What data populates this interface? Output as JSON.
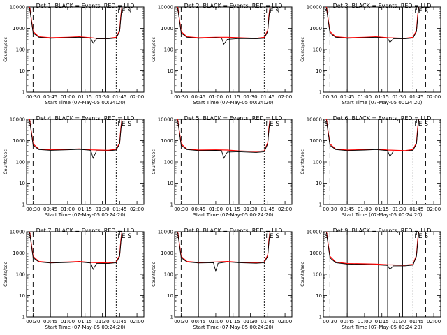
{
  "x_tick_labels": [
    "00:30",
    "00:45",
    "01:00",
    "01:15",
    "01:30",
    "01:45",
    "02:00"
  ],
  "y_tick_labels": [
    "1",
    "10",
    "100",
    "1000",
    "10000"
  ],
  "y_axis_label": "Counts/sec",
  "x_axis_label": "Start Time (07-May-05 00:24:20)",
  "annotation_left": "S",
  "annotation_right": "I E S",
  "colors": {
    "events": "#000000",
    "lld": "#ff0000",
    "background": "#ffffff"
  },
  "chart_data": [
    {
      "type": "line",
      "title": "Det 1, BLACK = Events, RED = LLD",
      "xlabel": "Start Time (07-May-05 00:24:20)",
      "ylabel": "Counts/sec",
      "x_range": [
        "00:24:20",
        "02:06"
      ],
      "ylim": [
        1,
        10000
      ],
      "y_scale": "log",
      "grid": false,
      "series": [
        {
          "name": "Events",
          "color": "black",
          "x": [
            "00:27",
            "00:30",
            "00:35",
            "00:45",
            "01:00",
            "01:10",
            "01:20",
            "01:22",
            "01:25",
            "01:35",
            "01:42",
            "01:45",
            "01:46",
            "01:47"
          ],
          "y": [
            9000,
            600,
            380,
            340,
            360,
            380,
            340,
            200,
            320,
            320,
            350,
            700,
            3000,
            10000
          ]
        },
        {
          "name": "LLD",
          "color": "red",
          "x": [
            "00:27",
            "00:30",
            "00:35",
            "00:45",
            "01:00",
            "01:10",
            "01:20",
            "01:25",
            "01:35",
            "01:42",
            "01:45",
            "01:46",
            "01:47"
          ],
          "y": [
            10000,
            700,
            400,
            360,
            380,
            400,
            360,
            340,
            340,
            380,
            800,
            4000,
            10000
          ]
        }
      ]
    },
    {
      "type": "line",
      "title": "Det 2, BLACK = Events, RED = LLD",
      "xlabel": "Start Time (07-May-05 00:24:20)",
      "ylabel": "Counts/sec",
      "x_range": [
        "00:24:20",
        "02:06"
      ],
      "ylim": [
        1,
        10000
      ],
      "y_scale": "log",
      "grid": false,
      "series": [
        {
          "name": "Events",
          "color": "black",
          "x": [
            "00:27",
            "00:30",
            "00:35",
            "00:45",
            "01:00",
            "01:05",
            "01:07",
            "01:10",
            "01:20",
            "01:35",
            "01:42",
            "01:45",
            "01:46",
            "01:47"
          ],
          "y": [
            9000,
            600,
            380,
            340,
            360,
            350,
            180,
            300,
            330,
            320,
            340,
            700,
            3000,
            10000
          ]
        },
        {
          "name": "LLD",
          "color": "red",
          "x": [
            "00:27",
            "00:30",
            "00:35",
            "00:45",
            "01:00",
            "01:10",
            "01:20",
            "01:35",
            "01:42",
            "01:45",
            "01:46",
            "01:47"
          ],
          "y": [
            10000,
            700,
            400,
            360,
            380,
            380,
            360,
            340,
            380,
            800,
            4000,
            10000
          ]
        }
      ]
    },
    {
      "type": "line",
      "title": "Det 3, BLACK = Events, RED = LLD",
      "xlabel": "Start Time (07-May-05 00:24:20)",
      "ylabel": "Counts/sec",
      "x_range": [
        "00:24:20",
        "02:06"
      ],
      "ylim": [
        1,
        10000
      ],
      "y_scale": "log",
      "grid": false,
      "series": [
        {
          "name": "Events",
          "color": "black",
          "x": [
            "00:27",
            "00:30",
            "00:35",
            "00:45",
            "01:00",
            "01:10",
            "01:20",
            "01:22",
            "01:25",
            "01:35",
            "01:42",
            "01:45",
            "01:46",
            "01:47"
          ],
          "y": [
            9000,
            600,
            380,
            340,
            360,
            380,
            340,
            220,
            320,
            320,
            350,
            700,
            3000,
            10000
          ]
        },
        {
          "name": "LLD",
          "color": "red",
          "x": [
            "00:27",
            "00:30",
            "00:35",
            "00:45",
            "01:00",
            "01:10",
            "01:20",
            "01:35",
            "01:42",
            "01:45",
            "01:46",
            "01:47"
          ],
          "y": [
            10000,
            700,
            400,
            360,
            380,
            400,
            360,
            340,
            380,
            800,
            4000,
            10000
          ]
        }
      ]
    },
    {
      "type": "line",
      "title": "Det 4, BLACK = Events, RED = LLD",
      "xlabel": "Start Time (07-May-05 00:24:20)",
      "ylabel": "Counts/sec",
      "x_range": [
        "00:24:20",
        "02:06"
      ],
      "ylim": [
        1,
        10000
      ],
      "y_scale": "log",
      "grid": false,
      "series": [
        {
          "name": "Events",
          "color": "black",
          "x": [
            "00:27",
            "00:30",
            "00:35",
            "00:45",
            "01:00",
            "01:10",
            "01:20",
            "01:22",
            "01:25",
            "01:35",
            "01:42",
            "01:45",
            "01:46",
            "01:47"
          ],
          "y": [
            9000,
            600,
            380,
            350,
            370,
            390,
            350,
            150,
            330,
            330,
            360,
            700,
            3000,
            10000
          ]
        },
        {
          "name": "LLD",
          "color": "red",
          "x": [
            "00:27",
            "00:30",
            "00:35",
            "00:45",
            "01:00",
            "01:10",
            "01:20",
            "01:35",
            "01:42",
            "01:45",
            "01:46",
            "01:47"
          ],
          "y": [
            10000,
            700,
            400,
            370,
            390,
            410,
            370,
            350,
            390,
            800,
            4000,
            10000
          ]
        }
      ]
    },
    {
      "type": "line",
      "title": "Det 5, BLACK = Events, RED = LLD",
      "xlabel": "Start Time (07-May-05 00:24:20)",
      "ylabel": "Counts/sec",
      "x_range": [
        "00:24:20",
        "02:06"
      ],
      "ylim": [
        1,
        10000
      ],
      "y_scale": "log",
      "grid": false,
      "series": [
        {
          "name": "Events",
          "color": "black",
          "x": [
            "00:27",
            "00:30",
            "00:35",
            "00:45",
            "01:00",
            "01:05",
            "01:07",
            "01:10",
            "01:20",
            "01:35",
            "01:42",
            "01:45",
            "01:46",
            "01:47"
          ],
          "y": [
            9000,
            600,
            380,
            340,
            350,
            340,
            150,
            290,
            300,
            280,
            300,
            700,
            3000,
            10000
          ]
        },
        {
          "name": "LLD",
          "color": "red",
          "x": [
            "00:27",
            "00:30",
            "00:35",
            "00:45",
            "01:00",
            "01:10",
            "01:20",
            "01:35",
            "01:42",
            "01:45",
            "01:46",
            "01:47"
          ],
          "y": [
            10000,
            700,
            400,
            360,
            370,
            360,
            330,
            310,
            330,
            800,
            4000,
            10000
          ]
        }
      ]
    },
    {
      "type": "line",
      "title": "Det 6, BLACK = Events, RED = LLD",
      "xlabel": "Start Time (07-May-05 00:24:20)",
      "ylabel": "Counts/sec",
      "x_range": [
        "00:24:20",
        "02:06"
      ],
      "ylim": [
        1,
        10000
      ],
      "y_scale": "log",
      "grid": false,
      "series": [
        {
          "name": "Events",
          "color": "black",
          "x": [
            "00:27",
            "00:30",
            "00:35",
            "00:45",
            "01:00",
            "01:10",
            "01:20",
            "01:22",
            "01:25",
            "01:35",
            "01:42",
            "01:45",
            "01:46",
            "01:47"
          ],
          "y": [
            9000,
            600,
            380,
            340,
            360,
            380,
            340,
            180,
            320,
            320,
            350,
            700,
            3000,
            10000
          ]
        },
        {
          "name": "LLD",
          "color": "red",
          "x": [
            "00:27",
            "00:30",
            "00:35",
            "00:45",
            "01:00",
            "01:10",
            "01:20",
            "01:35",
            "01:42",
            "01:45",
            "01:46",
            "01:47"
          ],
          "y": [
            10000,
            700,
            400,
            360,
            380,
            400,
            360,
            340,
            380,
            800,
            4000,
            10000
          ]
        }
      ]
    },
    {
      "type": "line",
      "title": "Det 7, BLACK = Events, RED = LLD",
      "xlabel": "Start Time (07-May-05 00:24:20)",
      "ylabel": "Counts/sec",
      "x_range": [
        "00:24:20",
        "02:06"
      ],
      "ylim": [
        1,
        10000
      ],
      "y_scale": "log",
      "grid": false,
      "series": [
        {
          "name": "Events",
          "color": "black",
          "x": [
            "00:27",
            "00:30",
            "00:35",
            "00:45",
            "01:00",
            "01:10",
            "01:20",
            "01:22",
            "01:25",
            "01:35",
            "01:42",
            "01:45",
            "01:46",
            "01:47"
          ],
          "y": [
            9000,
            600,
            380,
            340,
            360,
            380,
            340,
            170,
            320,
            320,
            350,
            700,
            3000,
            10000
          ]
        },
        {
          "name": "LLD",
          "color": "red",
          "x": [
            "00:27",
            "00:30",
            "00:35",
            "00:45",
            "01:00",
            "01:10",
            "01:20",
            "01:35",
            "01:42",
            "01:45",
            "01:46",
            "01:47"
          ],
          "y": [
            10000,
            700,
            400,
            360,
            380,
            400,
            360,
            340,
            380,
            800,
            4000,
            10000
          ]
        }
      ]
    },
    {
      "type": "line",
      "title": "Det 8, BLACK = Events, RED = LLD",
      "xlabel": "Start Time (07-May-05 00:24:20)",
      "ylabel": "Counts/sec",
      "x_range": [
        "00:24:20",
        "02:06"
      ],
      "ylim": [
        1,
        10000
      ],
      "y_scale": "log",
      "grid": false,
      "series": [
        {
          "name": "Events",
          "color": "black",
          "x": [
            "00:27",
            "00:30",
            "00:35",
            "00:45",
            "00:58",
            "01:00",
            "01:02",
            "01:10",
            "01:20",
            "01:35",
            "01:42",
            "01:45",
            "01:46",
            "01:47"
          ],
          "y": [
            9000,
            600,
            380,
            340,
            350,
            140,
            330,
            380,
            350,
            330,
            350,
            700,
            3000,
            10000
          ]
        },
        {
          "name": "LLD",
          "color": "red",
          "x": [
            "00:27",
            "00:30",
            "00:35",
            "00:45",
            "01:00",
            "01:10",
            "01:20",
            "01:35",
            "01:42",
            "01:45",
            "01:46",
            "01:47"
          ],
          "y": [
            10000,
            700,
            400,
            360,
            380,
            400,
            370,
            350,
            380,
            800,
            4000,
            10000
          ]
        }
      ]
    },
    {
      "type": "line",
      "title": "Det 9, BLACK = Events, RED = LLD",
      "xlabel": "Start Time (07-May-05 00:24:20)",
      "ylabel": "Counts/sec",
      "x_range": [
        "00:24:20",
        "02:06"
      ],
      "ylim": [
        1,
        10000
      ],
      "y_scale": "log",
      "grid": false,
      "series": [
        {
          "name": "Events",
          "color": "black",
          "x": [
            "00:27",
            "00:30",
            "00:35",
            "00:45",
            "01:00",
            "01:10",
            "01:20",
            "01:22",
            "01:25",
            "01:35",
            "01:42",
            "01:45",
            "01:46",
            "01:47"
          ],
          "y": [
            9000,
            600,
            350,
            300,
            290,
            280,
            260,
            170,
            250,
            250,
            270,
            700,
            3000,
            10000
          ]
        },
        {
          "name": "LLD",
          "color": "red",
          "x": [
            "00:27",
            "00:30",
            "00:35",
            "00:45",
            "01:00",
            "01:10",
            "01:20",
            "01:35",
            "01:42",
            "01:45",
            "01:46",
            "01:47"
          ],
          "y": [
            10000,
            700,
            380,
            320,
            310,
            300,
            280,
            270,
            290,
            800,
            4000,
            10000
          ]
        }
      ]
    }
  ]
}
